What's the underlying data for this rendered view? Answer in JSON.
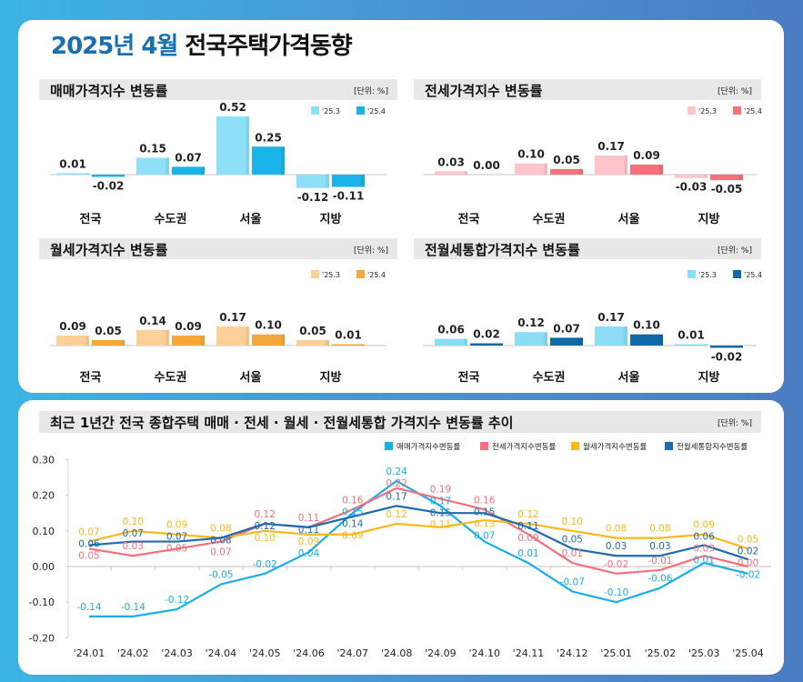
{
  "title": {
    "highlight": "2025년 4월",
    "rest": "전국주택가격동향"
  },
  "unit_label": "[단위: %]",
  "chart_data": [
    {
      "type": "bar",
      "title": "매매가격지수 변동률",
      "unit": "[단위: %]",
      "categories": [
        "전국",
        "수도권",
        "서울",
        "지방"
      ],
      "series": [
        {
          "name": "'25.3",
          "values": [
            0.01,
            0.15,
            0.52,
            -0.12
          ],
          "color": "#8de0f8"
        },
        {
          "name": "'25.4",
          "values": [
            -0.02,
            0.07,
            0.25,
            -0.11
          ],
          "color": "#1ab4ea"
        }
      ]
    },
    {
      "type": "bar",
      "title": "전세가격지수 변동률",
      "unit": "[단위: %]",
      "categories": [
        "전국",
        "수도권",
        "서울",
        "지방"
      ],
      "series": [
        {
          "name": "'25.3",
          "values": [
            0.03,
            0.1,
            0.17,
            -0.03
          ],
          "color": "#ffc5cb"
        },
        {
          "name": "'25.4",
          "values": [
            0.0,
            0.05,
            0.09,
            -0.05
          ],
          "color": "#f7707b"
        }
      ]
    },
    {
      "type": "bar",
      "title": "월세가격지수 변동률",
      "unit": "[단위: %]",
      "categories": [
        "전국",
        "수도권",
        "서울",
        "지방"
      ],
      "series": [
        {
          "name": "'25.3",
          "values": [
            0.09,
            0.14,
            0.17,
            0.05
          ],
          "color": "#fcd199"
        },
        {
          "name": "'25.4",
          "values": [
            0.05,
            0.09,
            0.1,
            0.01
          ],
          "color": "#f5a83a"
        }
      ]
    },
    {
      "type": "bar",
      "title": "전월세통합가격지수 변동률",
      "unit": "[단위: %]",
      "categories": [
        "전국",
        "수도권",
        "서울",
        "지방"
      ],
      "series": [
        {
          "name": "'25.3",
          "values": [
            0.06,
            0.12,
            0.17,
            0.01
          ],
          "color": "#8ddcf5"
        },
        {
          "name": "'25.4",
          "values": [
            0.02,
            0.07,
            0.1,
            -0.02
          ],
          "color": "#0e6aa6"
        }
      ]
    },
    {
      "type": "line",
      "title": "최근 1년간 전국 종합주택 매매 · 전세 · 월세 · 전월세통합 가격지수 변동률 추이",
      "unit": "[단위: %]",
      "x": [
        "'24.01",
        "'24.02",
        "'24.03",
        "'24.04",
        "'24.05",
        "'24.06",
        "'24.07",
        "'24.08",
        "'24.09",
        "'24.10",
        "'24.11",
        "'24.12",
        "'25.01",
        "'25.02",
        "'25.03",
        "'25.04"
      ],
      "ylim": [
        -0.2,
        0.3
      ],
      "yticks": [
        "0.30",
        "0.20",
        "0.10",
        "0.00",
        "-0.10",
        "-0.20"
      ],
      "legend": "top-right",
      "series": [
        {
          "name": "매매가격지수변동률",
          "color": "#1aaee8",
          "values": [
            -0.14,
            -0.14,
            -0.12,
            -0.05,
            -0.02,
            0.04,
            0.15,
            0.24,
            0.17,
            0.07,
            0.01,
            -0.07,
            -0.1,
            -0.06,
            0.01,
            -0.02
          ]
        },
        {
          "name": "전세가격지수변동률",
          "color": "#f5707a",
          "values": [
            0.05,
            0.03,
            0.05,
            0.07,
            0.12,
            0.11,
            0.16,
            0.22,
            0.19,
            0.16,
            0.09,
            0.01,
            -0.02,
            -0.01,
            0.03,
            0.0
          ]
        },
        {
          "name": "월세가격지수변동률",
          "color": "#fbb81c",
          "values": [
            0.07,
            0.1,
            0.09,
            0.08,
            0.1,
            0.09,
            0.09,
            0.12,
            0.11,
            0.13,
            0.12,
            0.1,
            0.08,
            0.08,
            0.09,
            0.05
          ]
        },
        {
          "name": "전월세통합지수변동률",
          "color": "#1f6bb0",
          "values": [
            0.06,
            0.07,
            0.07,
            0.08,
            0.12,
            0.11,
            0.14,
            0.17,
            0.15,
            0.15,
            0.11,
            0.05,
            0.03,
            0.03,
            0.06,
            0.02
          ]
        }
      ]
    }
  ]
}
